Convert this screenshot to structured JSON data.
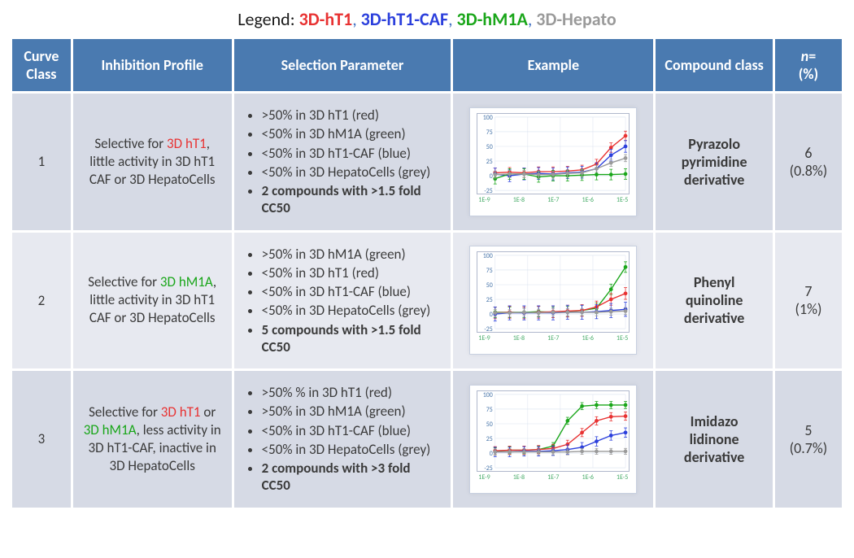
{
  "legend": {
    "prefix": "Legend: ",
    "items": [
      {
        "label": "3D-hT1",
        "color": "#e83232"
      },
      {
        "label": "3D-hT1-CAF",
        "color": "#2b3fdc"
      },
      {
        "label": "3D-hM1A",
        "color": "#1aa61a"
      },
      {
        "label": "3D-Hepato",
        "color": "#9a9a9a"
      }
    ],
    "comma_color": "#4472c4"
  },
  "headers": {
    "curve": "Curve Class",
    "profile": "Inhibition Profile",
    "selection": "Selection Parameter",
    "example": "Example",
    "compound": "Compound class",
    "n": "n= (%)"
  },
  "colors": {
    "header_bg": "#4a7ab0",
    "header_fg": "#ffffff",
    "cell_bg_odd": "#d6dae5",
    "cell_bg_even": "#e7e9f0",
    "red": "#e83232",
    "blue": "#2b3fdc",
    "green": "#1aa61a",
    "grey": "#9a9a9a",
    "grid": "#d9e2ef",
    "chart_border": "#b0b8cc",
    "frame_border": "#c8d0e0",
    "yaxis_text": "#4472a8"
  },
  "chart_common": {
    "type": "line",
    "ylim": [
      -25,
      100
    ],
    "yticks": [
      -25,
      0,
      25,
      50,
      75,
      100
    ],
    "xlabels": [
      "1E-9",
      "1E-8",
      "1E-7",
      "1E-6",
      "1E-5"
    ],
    "width": 188,
    "height": 100,
    "grid_color": "#d9e2ef",
    "background_color": "#ffffff",
    "marker_size": 2.4,
    "line_width": 1.4,
    "err_width": 0.8,
    "label_fontsize": 8
  },
  "rows": [
    {
      "curve": "1",
      "profile_segments": [
        {
          "t": "Selective for "
        },
        {
          "t": "3D hT1",
          "c": "red"
        },
        {
          "t": ", little activity in 3D hT1 CAF or 3D HepatoCells"
        }
      ],
      "selection": [
        {
          "text": ">50% in 3D hT1 (red)",
          "bold": false
        },
        {
          "text": "<50% in 3D hM1A (green)",
          "bold": false
        },
        {
          "text": "<50% in 3D hT1-CAF (blue)",
          "bold": false
        },
        {
          "text": "<50% in 3D HepatoCells (grey)",
          "bold": false
        },
        {
          "text": "2 compounds with >1.5 fold CC50",
          "bold": true
        }
      ],
      "compound": "Pyrazolo pyrimidine derivative",
      "n_count": "6",
      "n_pct": "(0.8%)",
      "chart": {
        "series": [
          {
            "color": "red",
            "y": [
              5,
              6,
              5,
              7,
              7,
              8,
              10,
              20,
              48,
              68
            ],
            "err": 8
          },
          {
            "color": "blue",
            "y": [
              3,
              0,
              3,
              4,
              3,
              5,
              6,
              12,
              35,
              50
            ],
            "err": 10
          },
          {
            "color": "green",
            "y": [
              -5,
              3,
              3,
              -2,
              0,
              0,
              1,
              2,
              2,
              3
            ],
            "err": 9
          },
          {
            "color": "grey",
            "y": [
              2,
              3,
              3,
              2,
              2,
              4,
              5,
              12,
              22,
              30
            ],
            "err": 6
          }
        ]
      }
    },
    {
      "curve": "2",
      "profile_segments": [
        {
          "t": "Selective for "
        },
        {
          "t": "3D hM1A",
          "c": "green"
        },
        {
          "t": ", little activity in 3D hT1 CAF or 3D HepatoCells"
        }
      ],
      "selection": [
        {
          "text": ">50% in 3D hM1A (green)",
          "bold": false
        },
        {
          "text": "<50% in 3D hT1 (red)",
          "bold": false
        },
        {
          "text": "<50% in 3D hT1-CAF (blue)",
          "bold": false
        },
        {
          "text": "<50% in 3D HepatoCells (grey)",
          "bold": false
        },
        {
          "text": "5 compounds with >1.5 fold CC50",
          "bold": true
        }
      ],
      "compound": "Phenyl quinoline derivative",
      "n_count": "7",
      "n_pct": "(1%)",
      "chart": {
        "series": [
          {
            "color": "green",
            "y": [
              3,
              3,
              3,
              4,
              3,
              4,
              6,
              10,
              42,
              80
            ],
            "err": 9
          },
          {
            "color": "red",
            "y": [
              2,
              3,
              2,
              3,
              4,
              5,
              6,
              12,
              25,
              35
            ],
            "err": 10
          },
          {
            "color": "blue",
            "y": [
              0,
              2,
              2,
              2,
              2,
              3,
              3,
              4,
              6,
              8
            ],
            "err": 12
          },
          {
            "color": "grey",
            "y": [
              2,
              2,
              3,
              2,
              3,
              3,
              3,
              3,
              4,
              5
            ],
            "err": 6
          }
        ]
      }
    },
    {
      "curve": "3",
      "profile_segments": [
        {
          "t": "Selective for "
        },
        {
          "t": "3D hT1",
          "c": "red"
        },
        {
          "t": " or "
        },
        {
          "t": "3D hM1A",
          "c": "green"
        },
        {
          "t": ", less activity in 3D hT1-CAF, inactive in 3D HepatoCells"
        }
      ],
      "selection": [
        {
          "text": ">50% % in 3D hT1 (red)",
          "bold": false
        },
        {
          "text": ">50% in 3D hM1A (green)",
          "bold": false
        },
        {
          "text": "<50% in 3D hT1-CAF (blue)",
          "bold": false
        },
        {
          "text": "<50% in 3D HepatoCells (grey)",
          "bold": false
        },
        {
          "text": "2 compounds with >3 fold CC50",
          "bold": true
        }
      ],
      "compound": "Imidazo lidinone derivative",
      "n_count": "5",
      "n_pct": "(0.7%)",
      "chart": {
        "series": [
          {
            "color": "green",
            "y": [
              3,
              5,
              5,
              6,
              12,
              55,
              80,
              82,
              82,
              82
            ],
            "err": 6
          },
          {
            "color": "red",
            "y": [
              4,
              5,
              5,
              6,
              8,
              15,
              35,
              55,
              62,
              63
            ],
            "err": 7
          },
          {
            "color": "blue",
            "y": [
              2,
              2,
              3,
              3,
              4,
              6,
              10,
              20,
              30,
              35
            ],
            "err": 8
          },
          {
            "color": "grey",
            "y": [
              2,
              2,
              2,
              2,
              2,
              2,
              3,
              3,
              3,
              3
            ],
            "err": 5
          }
        ]
      }
    }
  ]
}
